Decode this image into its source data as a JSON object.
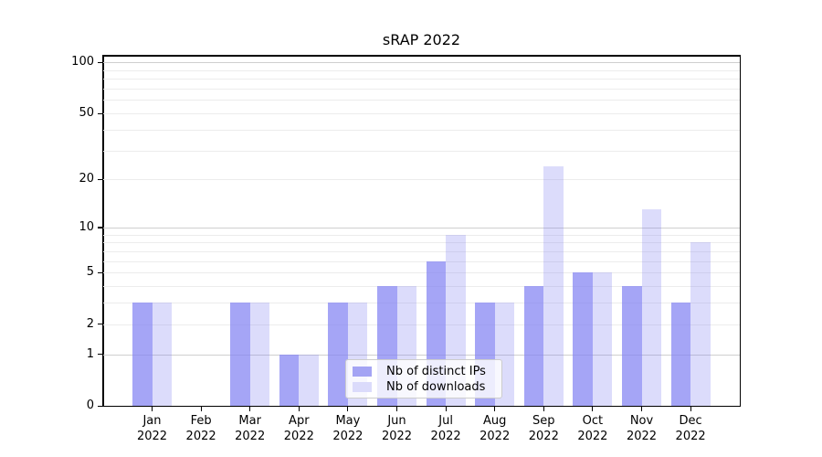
{
  "title": "sRAP 2022",
  "chart_data": {
    "type": "bar",
    "title": "sRAP 2022",
    "categories": [
      "Jan",
      "Feb",
      "Mar",
      "Apr",
      "May",
      "Jun",
      "Jul",
      "Aug",
      "Sep",
      "Oct",
      "Nov",
      "Dec"
    ],
    "category_year": "2022",
    "series": [
      {
        "name": "Nb of distinct IPs",
        "values": [
          3,
          0,
          3,
          1,
          3,
          4,
          6,
          3,
          4,
          5,
          4,
          3
        ],
        "color_base": "rgb(130,130,242)",
        "alpha": 0.72,
        "color_hex": "#a4a4f4"
      },
      {
        "name": "Nb of downloads",
        "values": [
          3,
          0,
          3,
          1,
          3,
          4,
          9,
          3,
          24,
          5,
          13,
          8
        ],
        "color_base": "rgb(130,130,242)",
        "alpha": 0.28,
        "color_hex": "#dbdbfb"
      }
    ],
    "yscale": "log1p",
    "ylim": [
      0,
      111
    ],
    "yticks": [
      0,
      1,
      2,
      5,
      10,
      20,
      50,
      100
    ],
    "grid": "both",
    "grid_minor_values": [
      2,
      3,
      4,
      5,
      6,
      7,
      8,
      9,
      20,
      30,
      40,
      50,
      60,
      70,
      80,
      90
    ],
    "grid_major_values": [
      1,
      10,
      100
    ],
    "legend_position": "lower-center",
    "colors": {
      "grid_minor": "#ececec",
      "grid_major": "#cfcfcf",
      "spine": "#000000",
      "background": "#ffffff"
    }
  }
}
